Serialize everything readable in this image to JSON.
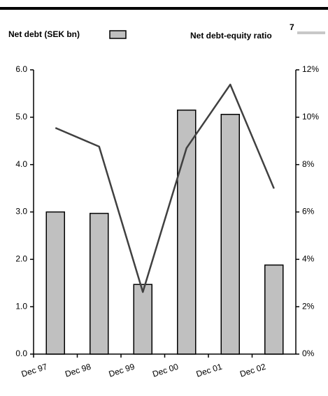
{
  "chart_data": {
    "type": "bar",
    "categories": [
      "Dec 97",
      "Dec 98",
      "Dec 99",
      "Dec 00",
      "Dec 01",
      "Dec 02"
    ],
    "series": [
      {
        "name": "Net debt (SEK bn)",
        "type": "bar",
        "axis": "y",
        "color": "#c0c0c0",
        "values": [
          3.0,
          2.97,
          1.47,
          5.15,
          5.06,
          1.88
        ]
      },
      {
        "name": "Net debt-equity ratio",
        "type": "line",
        "axis": "y2",
        "color": "#404040",
        "values": [
          9.55,
          8.76,
          2.62,
          8.7,
          11.38,
          6.99
        ]
      }
    ],
    "legend_footnote": "7",
    "ylim": [
      0,
      6
    ],
    "yticks": [
      {
        "value": 0,
        "label": "0.0"
      },
      {
        "value": 1,
        "label": "1.0"
      },
      {
        "value": 2,
        "label": "2.0"
      },
      {
        "value": 3,
        "label": "3.0"
      },
      {
        "value": 4,
        "label": "4.0"
      },
      {
        "value": 5,
        "label": "5.0"
      },
      {
        "value": 6,
        "label": "6.0"
      }
    ],
    "y2lim": [
      0,
      12
    ],
    "y2ticks": [
      {
        "value": 0,
        "label": "0%"
      },
      {
        "value": 2,
        "label": "2%"
      },
      {
        "value": 4,
        "label": "4%"
      },
      {
        "value": 6,
        "label": "6%"
      },
      {
        "value": 8,
        "label": "8%"
      },
      {
        "value": 10,
        "label": "10%"
      },
      {
        "value": 12,
        "label": "12%"
      }
    ],
    "grid": false
  }
}
